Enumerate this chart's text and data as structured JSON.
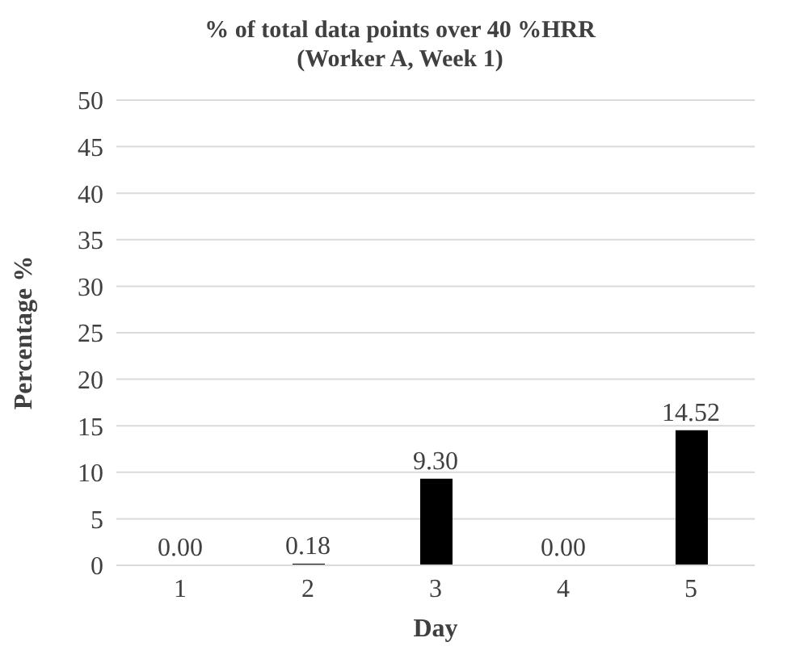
{
  "chart_data": {
    "type": "bar",
    "title": "% of total data points over 40 %HRR\n(Worker A, Week 1)",
    "xlabel": "Day",
    "ylabel": "Percentage %",
    "categories": [
      "1",
      "2",
      "3",
      "4",
      "5"
    ],
    "values": [
      0,
      0.18,
      9.3,
      0,
      14.52
    ],
    "value_labels": [
      "0.00",
      "0.18",
      "9.30",
      "0.00",
      "14.52"
    ],
    "color": "#000000",
    "ylim": [
      0,
      50
    ],
    "yticks": [
      0,
      5,
      10,
      15,
      20,
      25,
      30,
      35,
      40,
      45,
      50
    ],
    "grid": "y",
    "legend": false
  }
}
